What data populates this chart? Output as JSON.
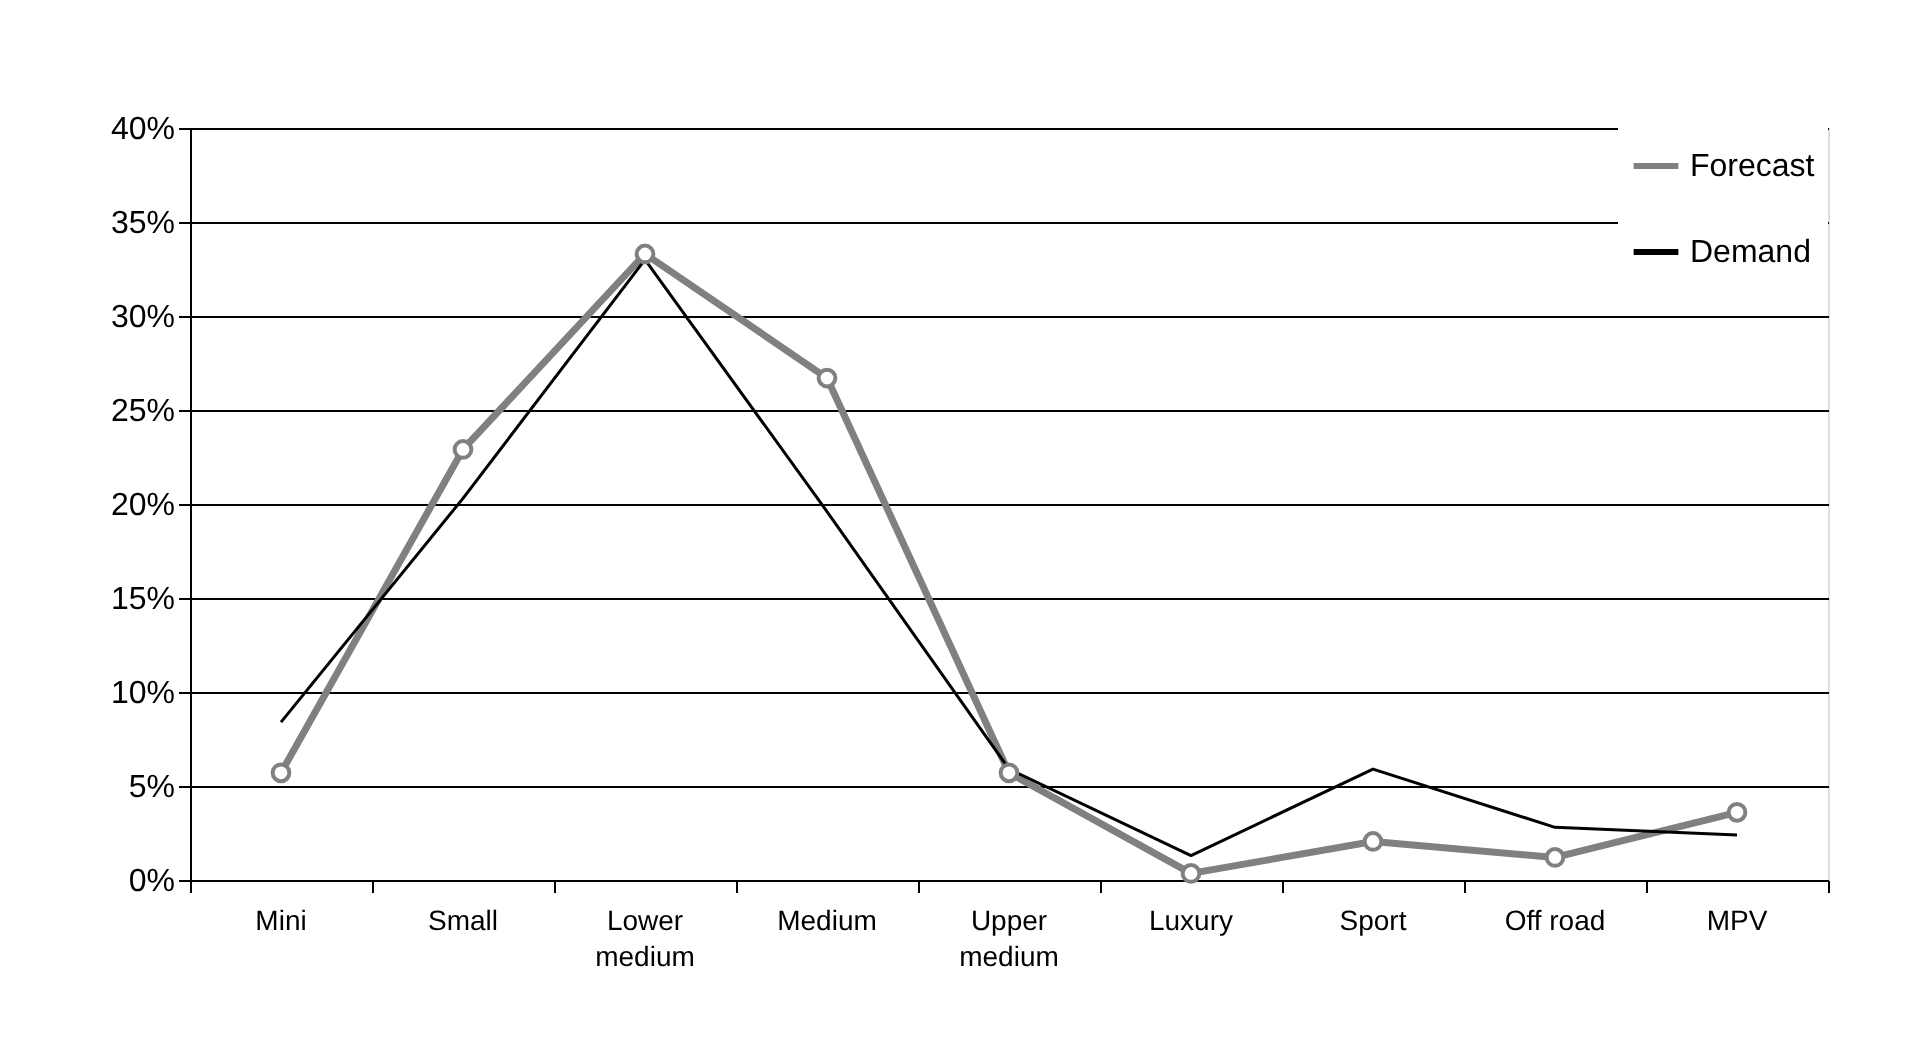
{
  "chart_data": {
    "type": "line",
    "categories": [
      "Mini",
      "Small",
      "Lower\nmedium",
      "Medium",
      "Upper\nmedium",
      "Luxury",
      "Sport",
      "Off road",
      "MPV"
    ],
    "series": [
      {
        "name": "Forecast",
        "color": "#808080",
        "marker": "circle",
        "values": [
          5.7,
          22.9,
          33.3,
          26.7,
          5.7,
          0.35,
          2.05,
          1.2,
          3.6
        ]
      },
      {
        "name": "Demand",
        "color": "#000000",
        "marker": "none",
        "values": [
          8.4,
          20.3,
          33.0,
          19.6,
          5.9,
          1.3,
          5.9,
          2.8,
          2.4
        ]
      }
    ],
    "ylim": [
      0,
      40
    ],
    "yticks": [
      {
        "value": 0,
        "label": "0%"
      },
      {
        "value": 5,
        "label": "5%"
      },
      {
        "value": 10,
        "label": "10%"
      },
      {
        "value": 15,
        "label": "15%"
      },
      {
        "value": 20,
        "label": "20%"
      },
      {
        "value": 25,
        "label": "25%"
      },
      {
        "value": 30,
        "label": "30%"
      },
      {
        "value": 35,
        "label": "35%"
      },
      {
        "value": 40,
        "label": "40%"
      }
    ],
    "grid": "y",
    "legend": "top right"
  }
}
